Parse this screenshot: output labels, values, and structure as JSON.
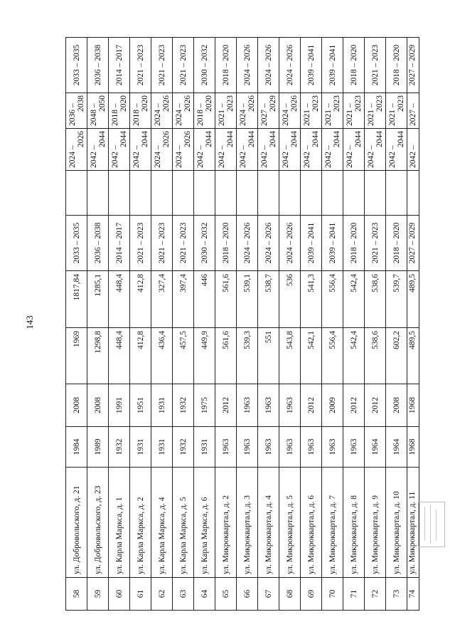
{
  "page_number": "143",
  "rows": [
    {
      "n": "58",
      "address": "ул. Добровольского, д. 21",
      "year_built": "1984",
      "year_repair": "2008",
      "area_total": "1969",
      "area_living": "1817,84",
      "period_a": "2033 – 2035",
      "blank": "",
      "period_b": {
        "from": "2024 –",
        "to": "2026"
      },
      "period_c": {
        "from": "2036 –",
        "to": "2038"
      },
      "period_d": "2033 – 2035"
    },
    {
      "n": "59",
      "address": "ул. Добровольского, д. 23",
      "year_built": "1989",
      "year_repair": "2008",
      "area_total": "1298,8",
      "area_living": "1285,1",
      "period_a": "2036 – 2038",
      "blank": "",
      "period_b": {
        "from": "2042 –",
        "to": "2044"
      },
      "period_c": {
        "from": "2048 –",
        "to": "2050"
      },
      "period_d": "2036 – 2038"
    },
    {
      "n": "60",
      "address": "ул. Карла Маркса, д. 1",
      "year_built": "1932",
      "year_repair": "1991",
      "area_total": "448,4",
      "area_living": "448,4",
      "period_a": "2014 – 2017",
      "blank": "",
      "period_b": {
        "from": "2042 –",
        "to": "2044"
      },
      "period_c": {
        "from": "2018 –",
        "to": "2020"
      },
      "period_d": "2014 – 2017"
    },
    {
      "n": "61",
      "address": "ул. Карла Маркса, д. 2",
      "year_built": "1931",
      "year_repair": "1951",
      "area_total": "412,8",
      "area_living": "412,8",
      "period_a": "2021 – 2023",
      "blank": "",
      "period_b": {
        "from": "2042 –",
        "to": "2044"
      },
      "period_c": {
        "from": "2018 –",
        "to": "2020"
      },
      "period_d": "2021 – 2023"
    },
    {
      "n": "62",
      "address": "ул. Карла Маркса, д. 4",
      "year_built": "1931",
      "year_repair": "1931",
      "area_total": "436,4",
      "area_living": "327,4",
      "period_a": "2021 – 2023",
      "blank": "",
      "period_b": {
        "from": "2024 –",
        "to": "2026"
      },
      "period_c": {
        "from": "2024 –",
        "to": "2026"
      },
      "period_d": "2021 – 2023"
    },
    {
      "n": "63",
      "address": "ул. Карла Маркса, д. 5",
      "year_built": "1932",
      "year_repair": "1932",
      "area_total": "457,5",
      "area_living": "397,4",
      "period_a": "2021 – 2023",
      "blank": "",
      "period_b": {
        "from": "2024 –",
        "to": "2026"
      },
      "period_c": {
        "from": "2024 –",
        "to": "2026"
      },
      "period_d": "2021 – 2023"
    },
    {
      "n": "64",
      "address": "ул. Карла Маркса, д. 6",
      "year_built": "1931",
      "year_repair": "1975",
      "area_total": "449,9",
      "area_living": "446",
      "period_a": "2030 – 2032",
      "blank": "",
      "period_b": {
        "from": "2042 –",
        "to": "2044"
      },
      "period_c": {
        "from": "2018 –",
        "to": "2020"
      },
      "period_d": "2030 – 2032"
    },
    {
      "n": "65",
      "address": "ул. Микроквартал, д. 2",
      "year_built": "1963",
      "year_repair": "2012",
      "area_total": "561,6",
      "area_living": "561,6",
      "period_a": "2018 – 2020",
      "blank": "",
      "period_b": {
        "from": "2042 –",
        "to": "2044"
      },
      "period_c": {
        "from": "2021 –",
        "to": "2023"
      },
      "period_d": "2018 – 2020"
    },
    {
      "n": "66",
      "address": "ул. Микроквартал, д. 3",
      "year_built": "1963",
      "year_repair": "1963",
      "area_total": "539,3",
      "area_living": "539,1",
      "period_a": "2024 – 2026",
      "blank": "",
      "period_b": {
        "from": "2042 –",
        "to": "2044"
      },
      "period_c": {
        "from": "2024 –",
        "to": "2026"
      },
      "period_d": "2024 – 2026"
    },
    {
      "n": "67",
      "address": "ул. Микроквартал, д. 4",
      "year_built": "1963",
      "year_repair": "1963",
      "area_total": "551",
      "area_living": "538,7",
      "period_a": "2024 – 2026",
      "blank": "",
      "period_b": {
        "from": "2042 –",
        "to": "2044"
      },
      "period_c": {
        "from": "2027 –",
        "to": "2029"
      },
      "period_d": "2024 – 2026"
    },
    {
      "n": "68",
      "address": "ул. Микроквартал, д. 5",
      "year_built": "1963",
      "year_repair": "1963",
      "area_total": "543,8",
      "area_living": "536",
      "period_a": "2024 – 2026",
      "blank": "",
      "period_b": {
        "from": "2042 –",
        "to": "2044"
      },
      "period_c": {
        "from": "2024 –",
        "to": "2026"
      },
      "period_d": "2024 – 2026"
    },
    {
      "n": "69",
      "address": "ул. Микроквартал, д. 6",
      "year_built": "1963",
      "year_repair": "2012",
      "area_total": "542,1",
      "area_living": "541,3",
      "period_a": "2039 – 2041",
      "blank": "",
      "period_b": {
        "from": "2042 –",
        "to": "2044"
      },
      "period_c": {
        "from": "2021 –",
        "to": "2023"
      },
      "period_d": "2039 – 2041"
    },
    {
      "n": "70",
      "address": "ул. Микроквартал, д. 7",
      "year_built": "1963",
      "year_repair": "2009",
      "area_total": "556,4",
      "area_living": "556,4",
      "period_a": "2039 – 2041",
      "blank": "",
      "period_b": {
        "from": "2042 –",
        "to": "2044"
      },
      "period_c": {
        "from": "2021 –",
        "to": "2023"
      },
      "period_d": "2039 – 2041"
    },
    {
      "n": "71",
      "address": "ул. Микроквартал, д. 8",
      "year_built": "1963",
      "year_repair": "2012",
      "area_total": "542,4",
      "area_living": "542,4",
      "period_a": "2018 – 2020",
      "blank": "",
      "period_b": {
        "from": "2042 –",
        "to": "2044"
      },
      "period_c": {
        "from": "2021 –",
        "to": "2023"
      },
      "period_d": "2018 – 2020"
    },
    {
      "n": "72",
      "address": "ул. Микроквартал, д. 9",
      "year_built": "1964",
      "year_repair": "2012",
      "area_total": "538,6",
      "area_living": "538,6",
      "period_a": "2021 – 2023",
      "blank": "",
      "period_b": {
        "from": "2042 –",
        "to": "2044"
      },
      "period_c": {
        "from": "2021 –",
        "to": "2023"
      },
      "period_d": "2021 – 2023"
    },
    {
      "n": "73",
      "address": "ул. Микроквартал, д. 10",
      "year_built": "1964",
      "year_repair": "2008",
      "area_total": "602,2",
      "area_living": "539,7",
      "period_a": "2018 – 2020",
      "blank": "",
      "period_b": {
        "from": "2042 –",
        "to": "2044"
      },
      "period_c": {
        "from": "2021 –",
        "to": "2023"
      },
      "period_d": "2018 – 2020"
    },
    {
      "n": "74",
      "address": "ул. Микроквартал, д. 11",
      "year_built": "1968",
      "year_repair": "1968",
      "area_total": "489,5",
      "area_living": "489,5",
      "period_a": "2027 – 2029",
      "blank": "",
      "period_b": {
        "from": "2042 –",
        "to": ""
      },
      "period_c": {
        "from": "2027 –",
        "to": ""
      },
      "period_d": "2027 – 2029"
    }
  ]
}
